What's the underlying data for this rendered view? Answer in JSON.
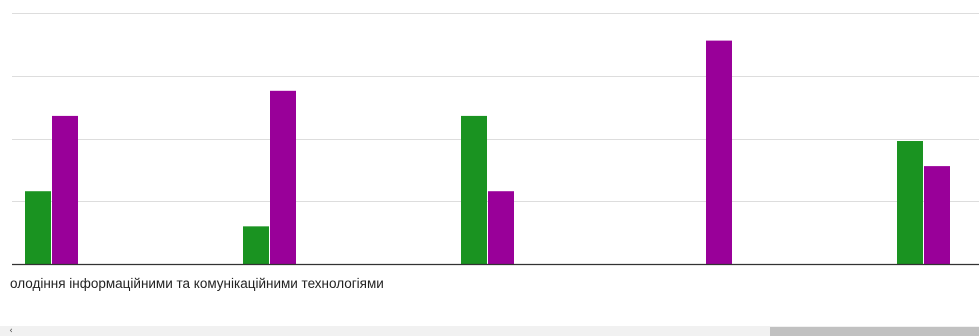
{
  "chart_data": {
    "type": "bar",
    "categories": [
      "",
      "",
      "",
      "",
      ""
    ],
    "series": [
      {
        "color": "#1a9321",
        "values": [
          1.45,
          0.75,
          2.95,
          0,
          2.45
        ]
      },
      {
        "color": "#990099",
        "values": [
          2.95,
          3.45,
          1.45,
          4.45,
          1.95
        ]
      }
    ],
    "xlabel": "олодіння інформаційними та комунікаційними технологіями",
    "ylabel": "",
    "ylim": [
      0,
      5
    ],
    "yticks": [
      0,
      1.25,
      2.5,
      3.75,
      5
    ],
    "grid": true,
    "legend": "none"
  },
  "colors": {
    "grid": "#dddddd",
    "axis": "#333333",
    "scrollbar_track": "#f1f1f1",
    "scrollbar_thumb": "#c1c1c1"
  },
  "scrollbar": {
    "left_arrow_icon": "‹"
  }
}
